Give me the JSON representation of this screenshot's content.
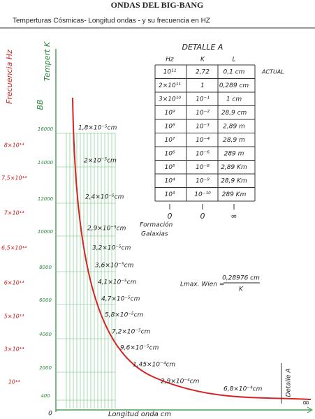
{
  "header": {
    "title": "ONDAS DEL BIG-BANG",
    "subtitle": "Temperturas Cósmicas- Longitud ondas -  y su frecuencia en HZ"
  },
  "axes": {
    "frequency_label": "Frecuencia Hz",
    "bb_label": "BB",
    "temperature_label": "Tempert K",
    "x_label": "Longitud onda  cm",
    "origin": "0",
    "infinity": "∞"
  },
  "frequency_ticks": [
    "8×10¹⁴",
    "7,5×10¹⁴",
    "7×10¹⁴",
    "6,5×10¹⁴",
    "6×10¹⁴",
    "5×10¹⁴",
    "3×10¹⁴",
    "10¹⁴"
  ],
  "temperature_ticks": [
    "16000",
    "14000",
    "12000",
    "10000",
    "8000",
    "6000",
    "4000",
    "2000",
    "400"
  ],
  "curve_labels": [
    "1,8×10⁻⁵cm",
    "2×10⁻⁵cm",
    "2,4×10⁻⁵cm",
    "2,9×10⁻⁵cm",
    "3,2×10⁻⁵cm",
    "3,6×10⁻⁵cm",
    "4,1×10⁻⁵cm",
    "4,7×10⁻⁵cm",
    "5,8×10⁻⁵cm",
    "7,2×10⁻⁵cm",
    "9,6×10⁻⁵cm",
    "1,45×10⁻⁴cm",
    "2,9×10⁻⁴cm",
    "6,8×10⁻⁴cm"
  ],
  "formation_label": [
    "Formación",
    "Galaxias"
  ],
  "detail_label": "Detalle A",
  "formula": {
    "left": "Lmax. Wien =",
    "numerator": "0,28976 cm",
    "denominator": "K"
  },
  "table": {
    "title": "DETALLE A",
    "headers": [
      "Hz",
      "K",
      "L"
    ],
    "note": "ACTUAL",
    "rows": [
      [
        "10¹¹",
        "2,72",
        "0,1 cm"
      ],
      [
        "2×10¹¹",
        "1",
        "0,289 cm"
      ],
      [
        "3×10¹⁰",
        "10⁻¹",
        "1 cm"
      ],
      [
        "10⁹",
        "10⁻²",
        "28,9 cm"
      ],
      [
        "10⁸",
        "10⁻³",
        "2,89 m"
      ],
      [
        "10⁷",
        "10⁻⁴",
        "28,9 m"
      ],
      [
        "10⁶",
        "10⁻⁶",
        "289 m"
      ],
      [
        "10⁵",
        "10⁻⁸",
        "2,89 Km"
      ],
      [
        "10⁴",
        "10⁻⁹",
        "28,9 Km"
      ],
      [
        "10³",
        "10⁻¹⁰",
        "289 Km"
      ]
    ],
    "limits": [
      "0",
      "0",
      "∞"
    ]
  }
}
